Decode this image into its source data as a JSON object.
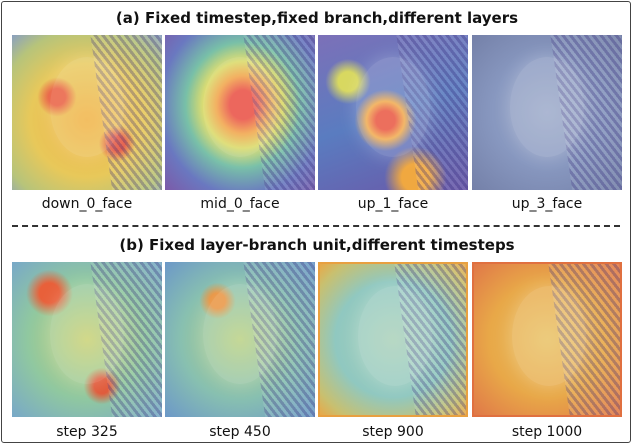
{
  "panels": [
    {
      "title": "(a) Fixed timestep,fixed branch,different layers",
      "images": [
        {
          "caption": "down_0_face"
        },
        {
          "caption": "mid_0_face"
        },
        {
          "caption": "up_1_face"
        },
        {
          "caption": "up_3_face"
        }
      ]
    },
    {
      "title": "(b) Fixed layer-branch unit,different timesteps",
      "images": [
        {
          "caption": "step 325"
        },
        {
          "caption": "step 450"
        },
        {
          "caption": "step 900"
        },
        {
          "caption": "step 1000"
        }
      ]
    }
  ]
}
